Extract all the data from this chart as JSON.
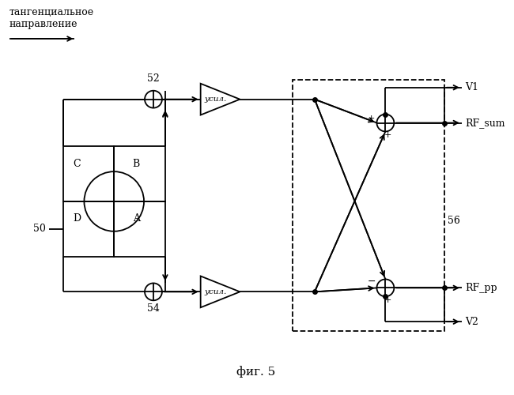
{
  "title": "фиг. 5",
  "header_text": "тангенциальное\nнаправление",
  "bg_color": "#ffffff",
  "line_color": "#000000",
  "label_50": "50",
  "label_52": "52",
  "label_54": "54",
  "label_56": "56",
  "label_V1": "V1",
  "label_V2": "V2",
  "label_RF_sum": "RF_sum",
  "label_RF_pp": "RF_pp",
  "label_A": "A",
  "label_B": "B",
  "label_C": "C",
  "label_D": "D",
  "label_usu": "усил."
}
